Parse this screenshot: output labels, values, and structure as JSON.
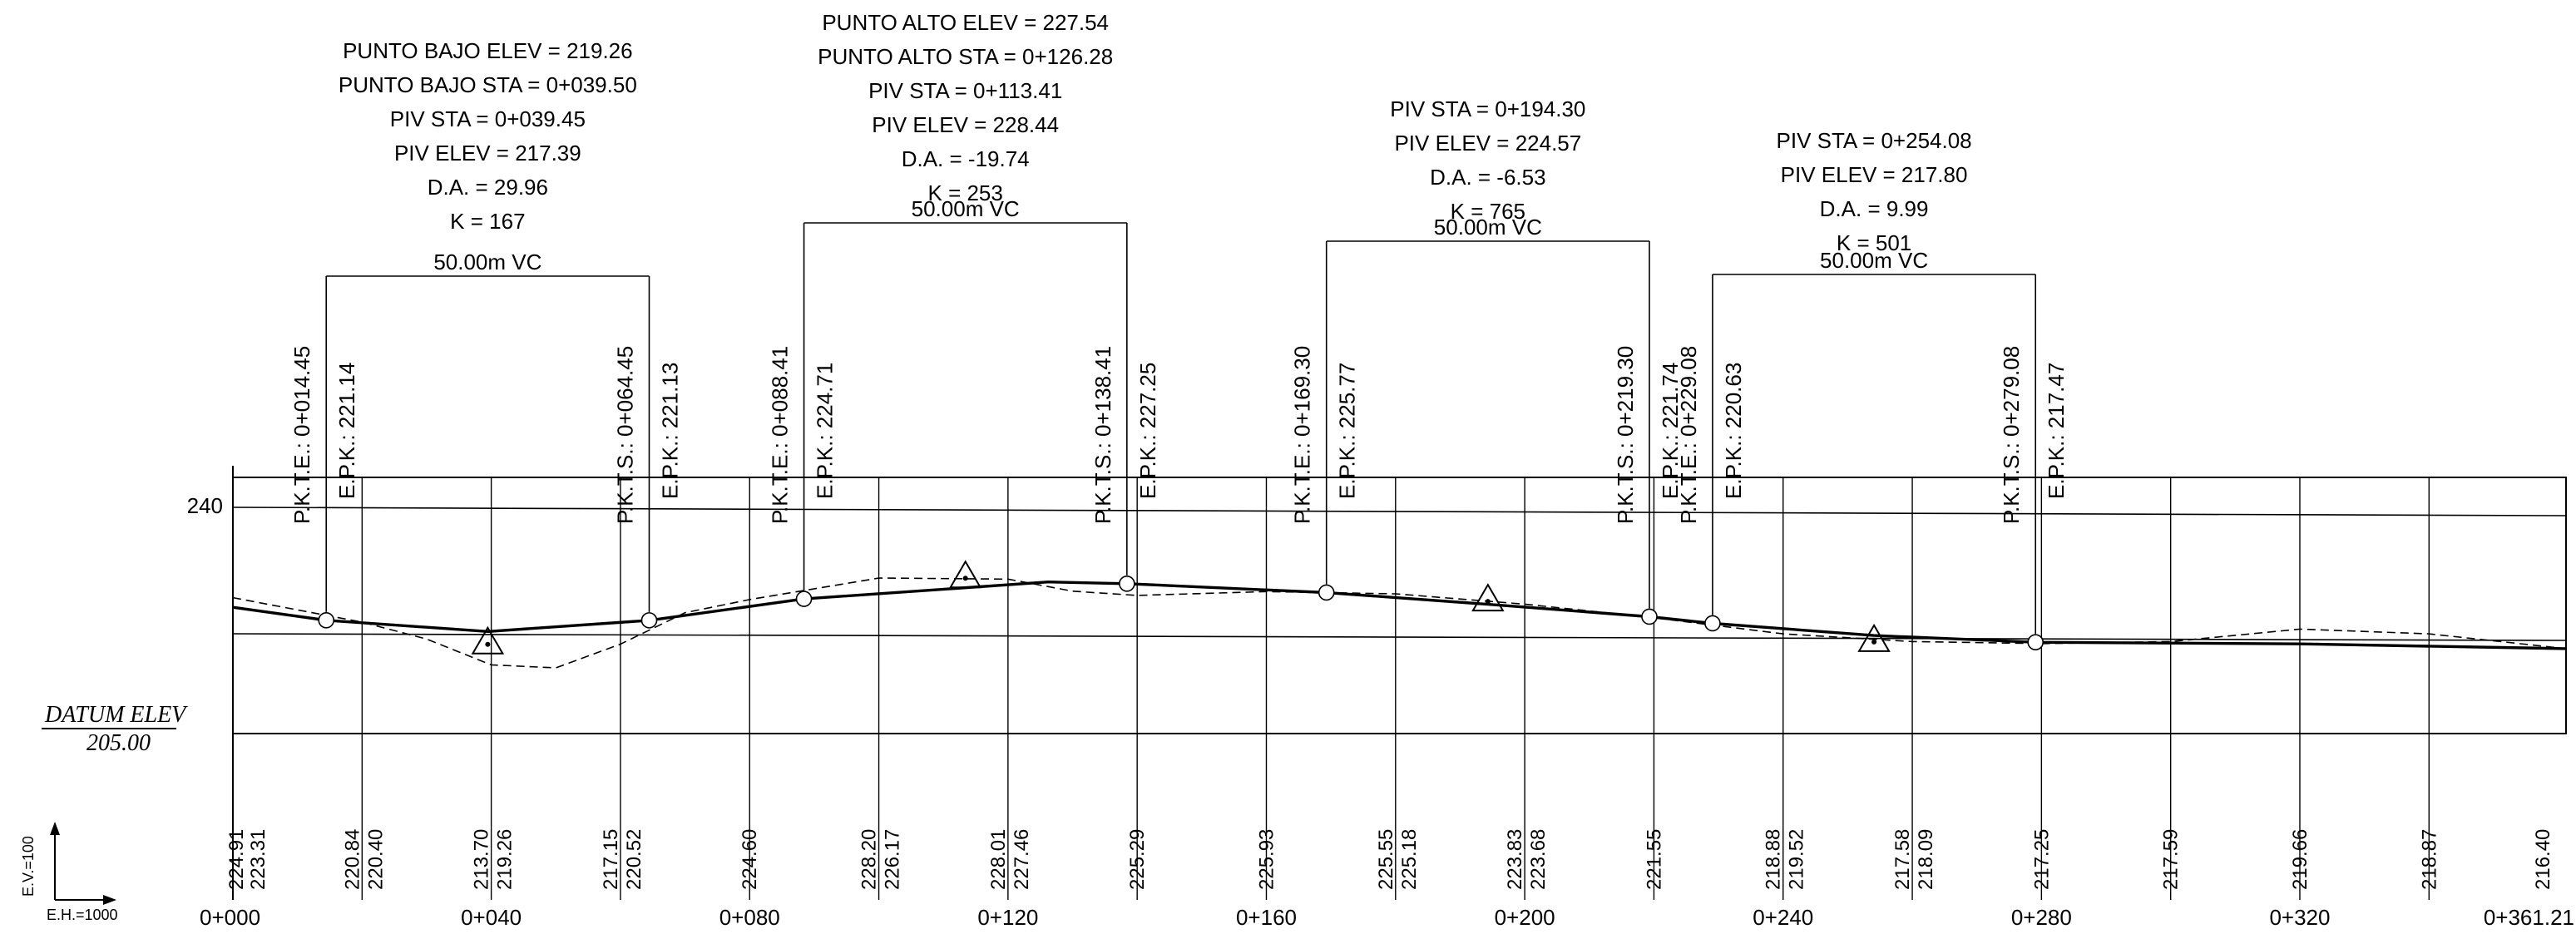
{
  "vertical_curves": [
    {
      "label_lines": [
        "PUNTO BAJO ELEV = 219.26",
        "PUNTO BAJO STA = 0+039.50",
        "PIV STA = 0+039.45",
        "PIV ELEV = 217.39",
        "D.A. = 29.96",
        "K = 167"
      ],
      "length_label": "50.00m VC",
      "pkte_label": "P.K.T.E.: 0+014.45",
      "epk_start_label": "E.P.K.: 221.14",
      "pkts_label": "P.K.T.S.: 0+064.45",
      "epk_end_label": "E.P.K.: 221.13",
      "start_sta": 14.45,
      "end_sta": 64.45,
      "piv_sta": 39.45,
      "piv_elev": 217.39,
      "start_elev": 221.14,
      "end_elev": 221.13,
      "type": "sag"
    },
    {
      "label_lines": [
        "PUNTO ALTO ELEV = 227.54",
        "PUNTO ALTO STA = 0+126.28",
        "PIV STA = 0+113.41",
        "PIV ELEV = 228.44",
        "D.A. = -19.74",
        "K = 253"
      ],
      "length_label": "50.00m VC",
      "pkte_label": "P.K.T.E.: 0+088.41",
      "epk_start_label": "E.P.K.: 224.71",
      "pkts_label": "P.K.T.S.: 0+138.41",
      "epk_end_label": "E.P.K.: 227.25",
      "start_sta": 88.41,
      "end_sta": 138.41,
      "piv_sta": 113.41,
      "piv_elev": 228.44,
      "start_elev": 224.71,
      "end_elev": 227.25,
      "type": "crest"
    },
    {
      "label_lines": [
        "PIV STA = 0+194.30",
        "PIV ELEV = 224.57",
        "D.A. = -6.53",
        "K = 765"
      ],
      "length_label": "50.00m VC",
      "pkte_label": "P.K.T.E.: 0+169.30",
      "epk_start_label": "E.P.K.: 225.77",
      "pkts_label": "P.K.T.S.: 0+219.30",
      "epk_end_label": "E.P.K.: 221.74",
      "start_sta": 169.3,
      "end_sta": 219.3,
      "piv_sta": 194.3,
      "piv_elev": 224.57,
      "start_elev": 225.77,
      "end_elev": 221.74,
      "type": "crest"
    },
    {
      "label_lines": [
        "PIV STA = 0+254.08",
        "PIV ELEV = 217.80",
        "D.A. = 9.99",
        "K = 501"
      ],
      "length_label": "50.00m VC",
      "pkte_label": "P.K.T.E.: 0+229.08",
      "epk_start_label": "E.P.K.: 220.63",
      "pkts_label": "P.K.T.S.: 0+279.08",
      "epk_end_label": "E.P.K.: 217.47",
      "start_sta": 229.08,
      "end_sta": 279.08,
      "piv_sta": 254.08,
      "piv_elev": 217.8,
      "start_elev": 220.63,
      "end_elev": 217.47,
      "type": "sag"
    }
  ],
  "datum_label": "DATUM ELEV",
  "datum_value": "205.00",
  "grid_elev_label": "240",
  "grid_elev": 240,
  "datum_elev": 205,
  "scale": {
    "vertical": "E.V.=100",
    "horizontal": "E.H.=1000"
  },
  "stations": [
    {
      "sta": 0,
      "label": "0+000"
    },
    {
      "sta": 40,
      "label": "0+040"
    },
    {
      "sta": 80,
      "label": "0+080"
    },
    {
      "sta": 120,
      "label": "0+120"
    },
    {
      "sta": 160,
      "label": "0+160"
    },
    {
      "sta": 200,
      "label": "0+200"
    },
    {
      "sta": 240,
      "label": "0+240"
    },
    {
      "sta": 280,
      "label": "0+280"
    },
    {
      "sta": 320,
      "label": "0+320"
    },
    {
      "sta": 361.21,
      "label": "0+361.21"
    }
  ],
  "elevation_columns": [
    {
      "sta": 0,
      "labels": [
        "224.91",
        "223.31"
      ]
    },
    {
      "sta": 20,
      "labels": [
        "220.84",
        "220.40"
      ]
    },
    {
      "sta": 40,
      "labels": [
        "213.70",
        "219.26"
      ]
    },
    {
      "sta": 60,
      "labels": [
        "217.15",
        "220.52"
      ]
    },
    {
      "sta": 80,
      "labels": [
        "224.60"
      ]
    },
    {
      "sta": 100,
      "labels": [
        "228.20",
        "226.17"
      ]
    },
    {
      "sta": 120,
      "labels": [
        "228.01",
        "227.46"
      ]
    },
    {
      "sta": 140,
      "labels": [
        "225.29"
      ]
    },
    {
      "sta": 160,
      "labels": [
        "225.93"
      ]
    },
    {
      "sta": 180,
      "labels": [
        "225.55",
        "225.18"
      ]
    },
    {
      "sta": 200,
      "labels": [
        "223.83",
        "223.68"
      ]
    },
    {
      "sta": 220,
      "labels": [
        "221.55"
      ]
    },
    {
      "sta": 240,
      "labels": [
        "218.88",
        "219.52"
      ]
    },
    {
      "sta": 260,
      "labels": [
        "217.58",
        "218.09"
      ]
    },
    {
      "sta": 280,
      "labels": [
        "217.25"
      ]
    },
    {
      "sta": 300,
      "labels": [
        "217.59"
      ]
    },
    {
      "sta": 320,
      "labels": [
        "219.66"
      ]
    },
    {
      "sta": 340,
      "labels": [
        "218.87"
      ]
    },
    {
      "sta": 361.21,
      "labels": [
        "216.40"
      ]
    }
  ],
  "design_profile": [
    {
      "sta": 0,
      "elev": 223.31
    },
    {
      "sta": 14.45,
      "elev": 221.14
    },
    {
      "sta": 39.5,
      "elev": 219.26
    },
    {
      "sta": 64.45,
      "elev": 221.13
    },
    {
      "sta": 88.41,
      "elev": 224.71
    },
    {
      "sta": 126.28,
      "elev": 227.54
    },
    {
      "sta": 138.41,
      "elev": 227.25
    },
    {
      "sta": 169.3,
      "elev": 225.77
    },
    {
      "sta": 194.3,
      "elev": 223.8
    },
    {
      "sta": 219.3,
      "elev": 221.74
    },
    {
      "sta": 229.08,
      "elev": 220.63
    },
    {
      "sta": 254.08,
      "elev": 218.6
    },
    {
      "sta": 279.08,
      "elev": 217.47
    },
    {
      "sta": 320,
      "elev": 217.2
    },
    {
      "sta": 361.21,
      "elev": 216.4
    }
  ],
  "ground_profile": [
    {
      "sta": 0,
      "elev": 224.91
    },
    {
      "sta": 20,
      "elev": 220.84
    },
    {
      "sta": 30,
      "elev": 218.0
    },
    {
      "sta": 40,
      "elev": 213.7
    },
    {
      "sta": 50,
      "elev": 213.2
    },
    {
      "sta": 60,
      "elev": 217.15
    },
    {
      "sta": 70,
      "elev": 222.4
    },
    {
      "sta": 80,
      "elev": 224.6
    },
    {
      "sta": 100,
      "elev": 228.2
    },
    {
      "sta": 120,
      "elev": 228.01
    },
    {
      "sta": 130,
      "elev": 226.0
    },
    {
      "sta": 140,
      "elev": 225.29
    },
    {
      "sta": 160,
      "elev": 225.93
    },
    {
      "sta": 180,
      "elev": 225.55
    },
    {
      "sta": 200,
      "elev": 223.83
    },
    {
      "sta": 220,
      "elev": 221.55
    },
    {
      "sta": 240,
      "elev": 218.88
    },
    {
      "sta": 260,
      "elev": 217.58
    },
    {
      "sta": 280,
      "elev": 217.25
    },
    {
      "sta": 300,
      "elev": 217.59
    },
    {
      "sta": 320,
      "elev": 219.66
    },
    {
      "sta": 340,
      "elev": 218.87
    },
    {
      "sta": 361.21,
      "elev": 216.4
    }
  ]
}
